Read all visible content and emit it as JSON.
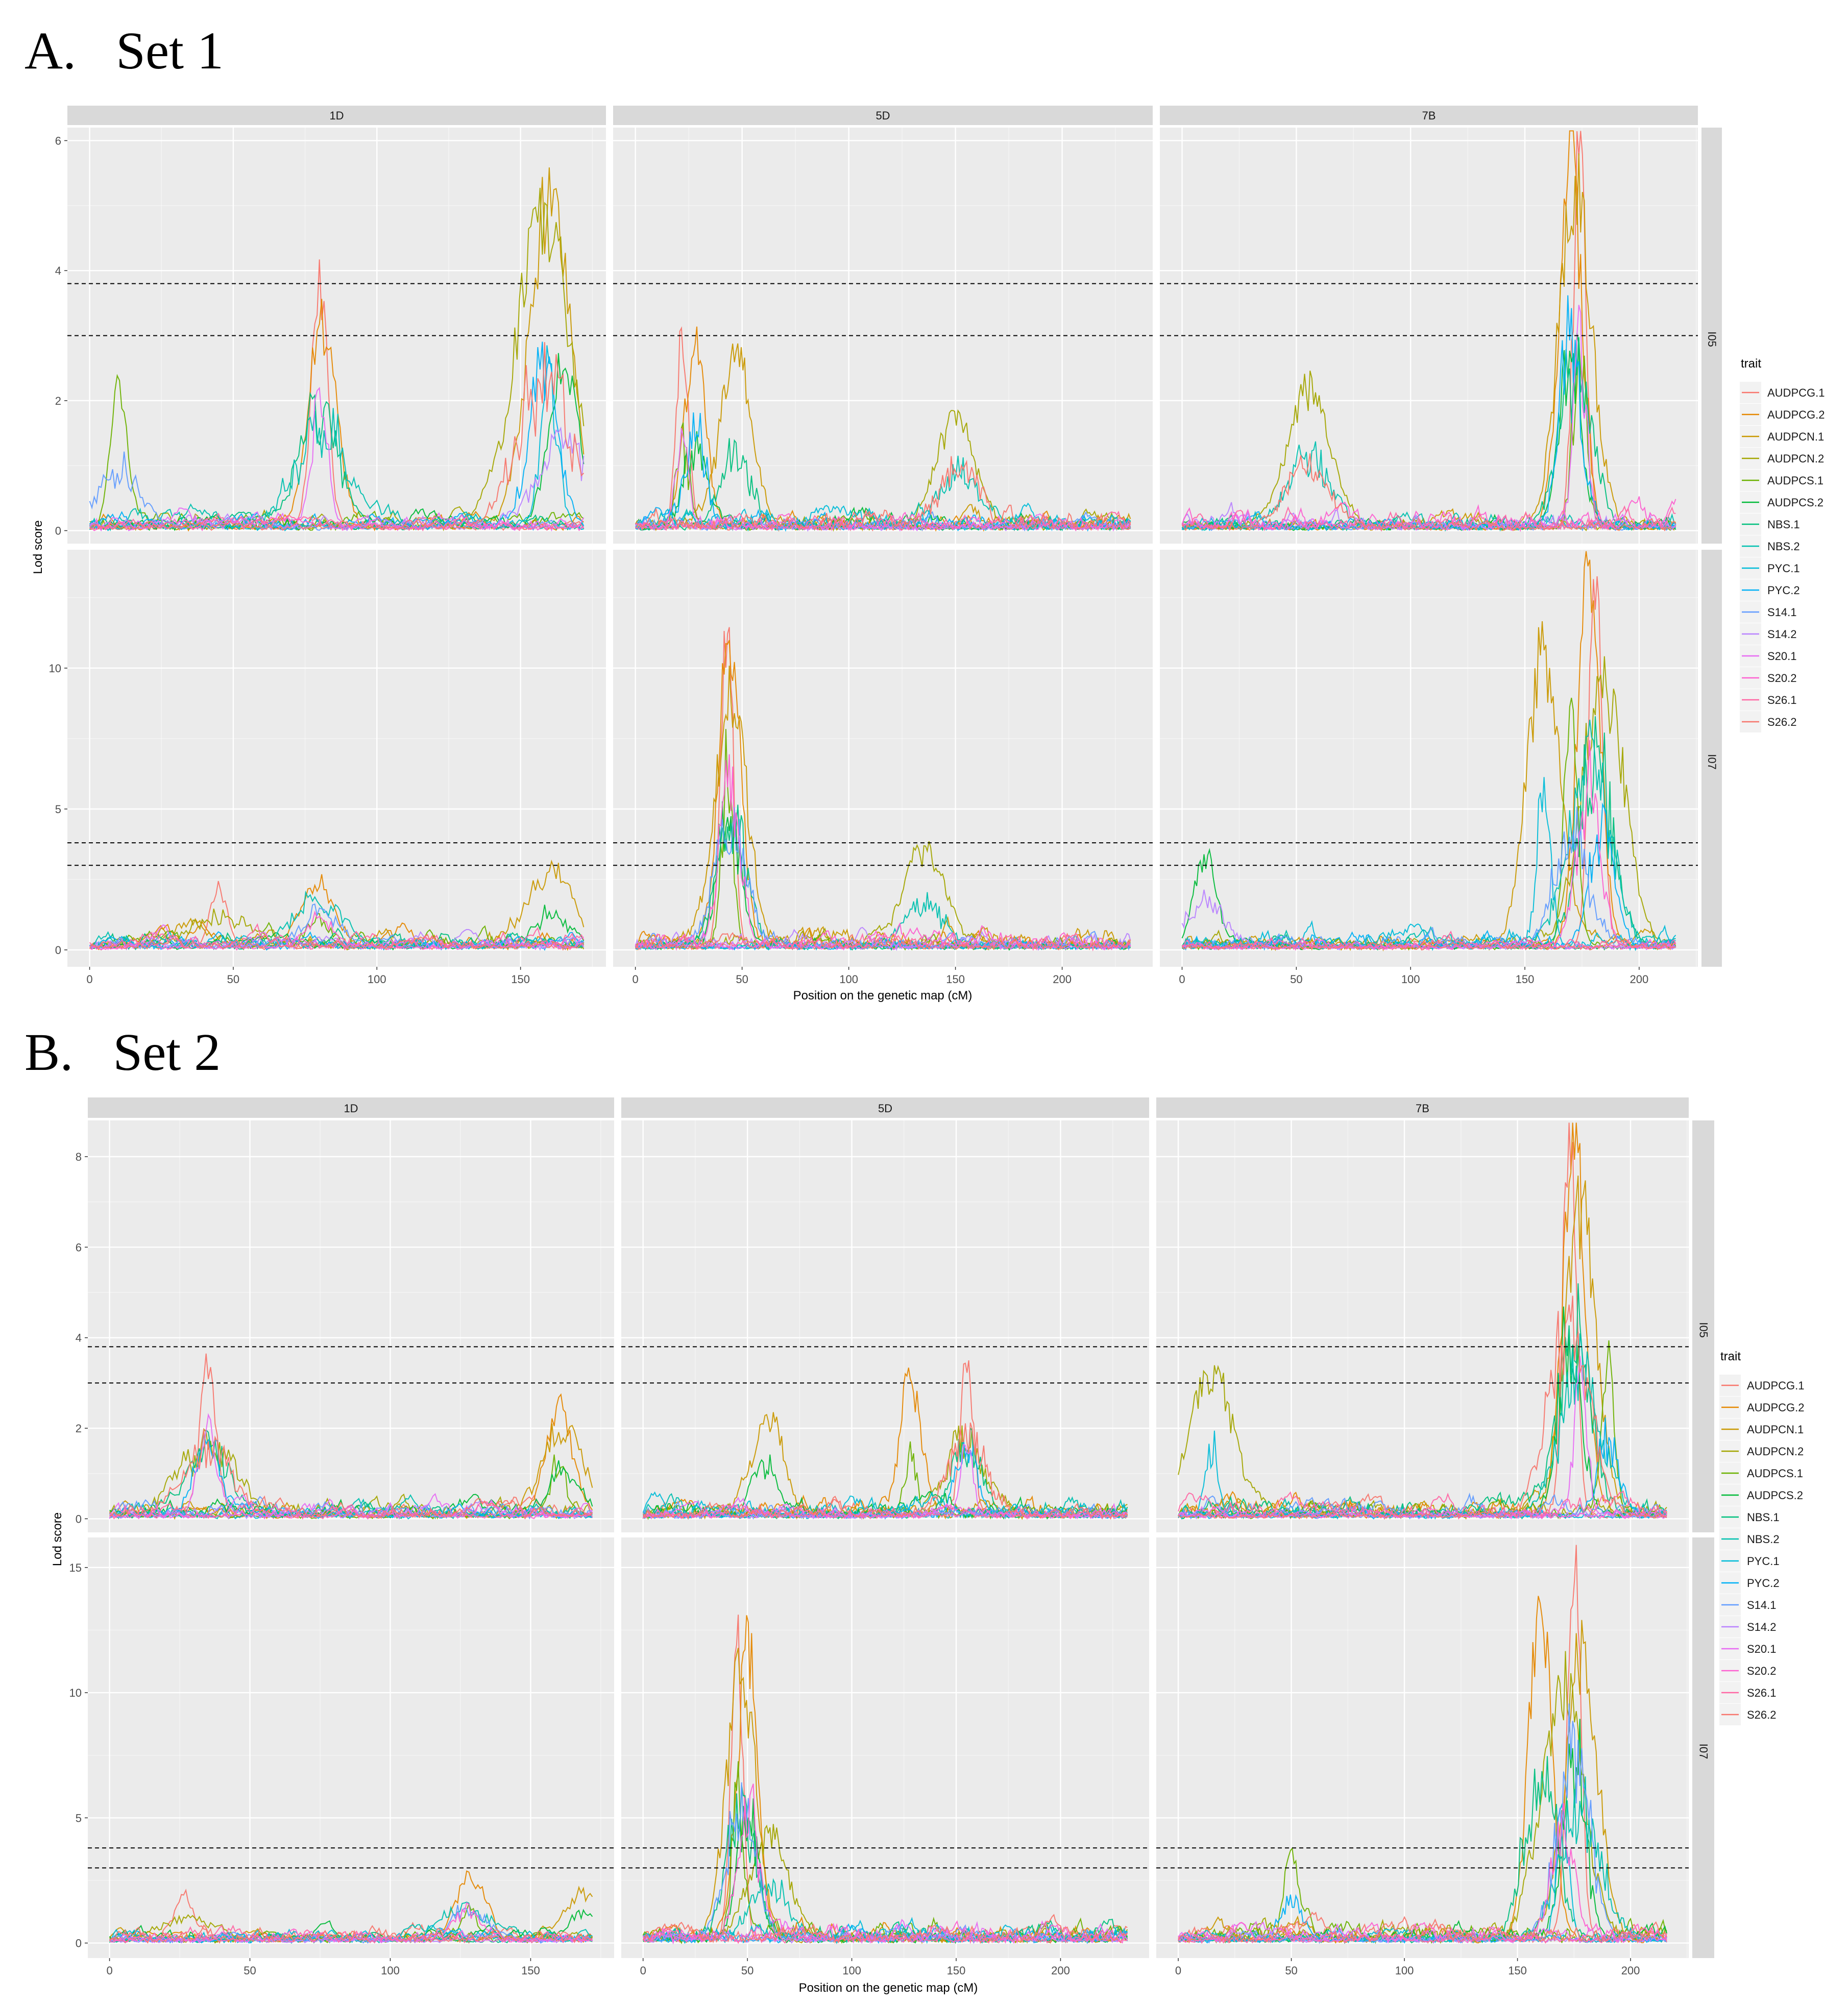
{
  "figure": {
    "panels": [
      {
        "label": "A.",
        "title": "Set 1"
      },
      {
        "label": "B.",
        "title": "Set 2"
      }
    ]
  },
  "colors": {
    "panel_bg": "#EBEBEB",
    "strip_bg": "#D9D9D9",
    "grid_major": "#FFFFFF",
    "threshold": "#000000"
  },
  "chart_data": [
    {
      "type": "line",
      "title": "Set 1",
      "xlabel": "Position on the genetic map (cM)",
      "ylabel": "Lod score",
      "facet_columns": [
        "1D",
        "5D",
        "7B"
      ],
      "facet_rows": [
        "I05",
        "I07"
      ],
      "x_ticks": [
        0,
        50,
        100,
        150,
        200
      ],
      "x_range": {
        "1D": [
          0,
          172
        ],
        "5D": [
          0,
          232
        ],
        "7B": [
          0,
          216
        ]
      },
      "ylim": {
        "I05": [
          -0.2,
          6.2
        ],
        "I07": [
          -0.6,
          14.2
        ]
      },
      "y_ticks": {
        "I05": [
          0,
          2,
          4,
          6
        ],
        "I07": [
          0,
          5,
          10
        ]
      },
      "thresholds": [
        3.0,
        3.8
      ],
      "grid": true,
      "legend_title": "trait",
      "legend_position": "right",
      "series": [
        "AUDPCG.1",
        "AUDPCG.2",
        "AUDPCN.1",
        "AUDPCN.2",
        "AUDPCS.1",
        "AUDPCS.2",
        "NBS.1",
        "NBS.2",
        "PYC.1",
        "PYC.2",
        "S14.1",
        "S14.2",
        "S20.1",
        "S20.2",
        "S26.1",
        "S26.2"
      ],
      "peaks": {
        "I05": {
          "1D": [
            [
              80,
              3.7
            ],
            [
              81,
              3.1
            ],
            [
              160,
              5.0
            ],
            [
              158,
              4.7
            ],
            [
              10,
              1.9
            ],
            [
              165,
              2.4
            ]
          ],
          "5D": [
            [
              22,
              2.9
            ],
            [
              28,
              2.7
            ],
            [
              47,
              2.5
            ],
            [
              150,
              1.6
            ]
          ],
          "7B": [
            [
              174,
              5.8
            ],
            [
              170,
              5.6
            ],
            [
              172,
              5.2
            ],
            [
              55,
              2.1
            ]
          ]
        },
        "I07": {
          "1D": [
            [
              45,
              2.1
            ],
            [
              80,
              2.2
            ],
            [
              160,
              2.4
            ]
          ],
          "5D": [
            [
              43,
              11.5
            ],
            [
              44,
              10.9
            ],
            [
              45,
              8.9
            ],
            [
              135,
              3.3
            ]
          ],
          "7B": [
            [
              181,
              13.6
            ],
            [
              178,
              12.8
            ],
            [
              158,
              10.3
            ],
            [
              184,
              9.1
            ],
            [
              170,
              8.4
            ],
            [
              10,
              3.1
            ]
          ]
        }
      }
    },
    {
      "type": "line",
      "title": "Set 2",
      "xlabel": "Position on the genetic map (cM)",
      "ylabel": "Lod score",
      "facet_columns": [
        "1D",
        "5D",
        "7B"
      ],
      "facet_rows": [
        "I05",
        "I07"
      ],
      "x_ticks": [
        0,
        50,
        100,
        150,
        200
      ],
      "x_range": {
        "1D": [
          0,
          172
        ],
        "5D": [
          0,
          232
        ],
        "7B": [
          0,
          216
        ]
      },
      "ylim": {
        "I05": [
          -0.3,
          8.8
        ],
        "I07": [
          -0.6,
          16.2
        ]
      },
      "y_ticks": {
        "I05": [
          0,
          2,
          4,
          6,
          8
        ],
        "I07": [
          0,
          5,
          10,
          15
        ]
      },
      "thresholds": [
        3.0,
        3.8
      ],
      "grid": true,
      "legend_title": "trait",
      "legend_position": "right",
      "series": [
        "AUDPCG.1",
        "AUDPCG.2",
        "AUDPCN.1",
        "AUDPCN.2",
        "AUDPCS.1",
        "AUDPCS.2",
        "NBS.1",
        "NBS.2",
        "PYC.1",
        "PYC.2",
        "S14.1",
        "S14.2",
        "S20.1",
        "S20.2",
        "S26.1",
        "S26.2"
      ],
      "peaks": {
        "I05": {
          "1D": [
            [
              35,
              3.1
            ],
            [
              160,
              2.3
            ],
            [
              162,
              1.9
            ]
          ],
          "5D": [
            [
              155,
              3.5
            ],
            [
              128,
              2.9
            ],
            [
              60,
              2.1
            ]
          ],
          "7B": [
            [
              173,
              8.6
            ],
            [
              175,
              8.2
            ],
            [
              178,
              6.6
            ],
            [
              15,
              3.1
            ],
            [
              190,
              3.3
            ]
          ],
          "_": []
        },
        "I07": {
          "1D": [
            [
              27,
              1.7
            ],
            [
              128,
              2.4
            ],
            [
              168,
              1.7
            ]
          ],
          "5D": [
            [
              45,
              11.6
            ],
            [
              50,
              11.4
            ],
            [
              47,
              10.6
            ],
            [
              60,
              4.0
            ]
          ],
          "7B": [
            [
              175,
              15.5
            ],
            [
              160,
              13.5
            ],
            [
              178,
              11.0
            ],
            [
              170,
              9.8
            ],
            [
              50,
              3.5
            ]
          ]
        }
      }
    }
  ]
}
